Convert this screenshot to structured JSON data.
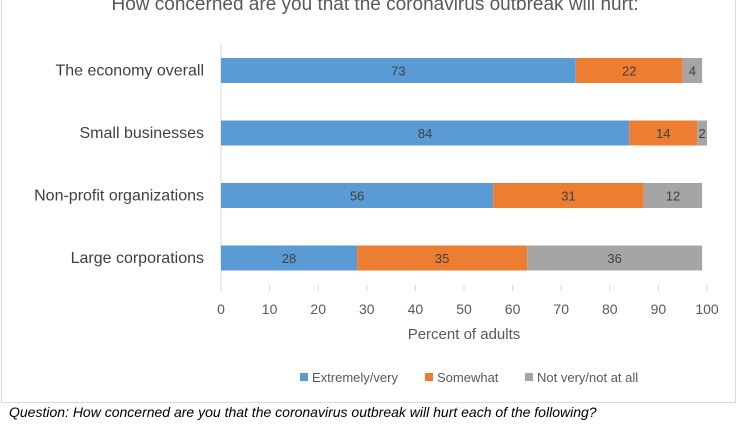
{
  "chart_data": {
    "type": "bar",
    "orientation": "horizontal",
    "stacked": true,
    "title": "How concerned are you that the coronavirus outbreak will hurt:",
    "xlabel": "Percent of adults",
    "ylabel": "",
    "xlim": [
      0,
      100
    ],
    "xticks": [
      0,
      10,
      20,
      30,
      40,
      50,
      60,
      70,
      80,
      90,
      100
    ],
    "grid": false,
    "legend_position": "bottom",
    "categories": [
      "The economy overall",
      "Small businesses",
      "Non-profit organizations",
      "Large corporations"
    ],
    "series": [
      {
        "name": "Extremely/very",
        "color": "#5b9bd5",
        "values": [
          73,
          84,
          56,
          28
        ]
      },
      {
        "name": "Somewhat",
        "color": "#ed7d31",
        "values": [
          22,
          14,
          31,
          35
        ]
      },
      {
        "name": "Not very/not at all",
        "color": "#a5a5a5",
        "values": [
          4,
          2,
          12,
          36
        ]
      }
    ]
  },
  "caption": "Question: How concerned are you that the coronavirus outbreak will hurt each of the following?"
}
